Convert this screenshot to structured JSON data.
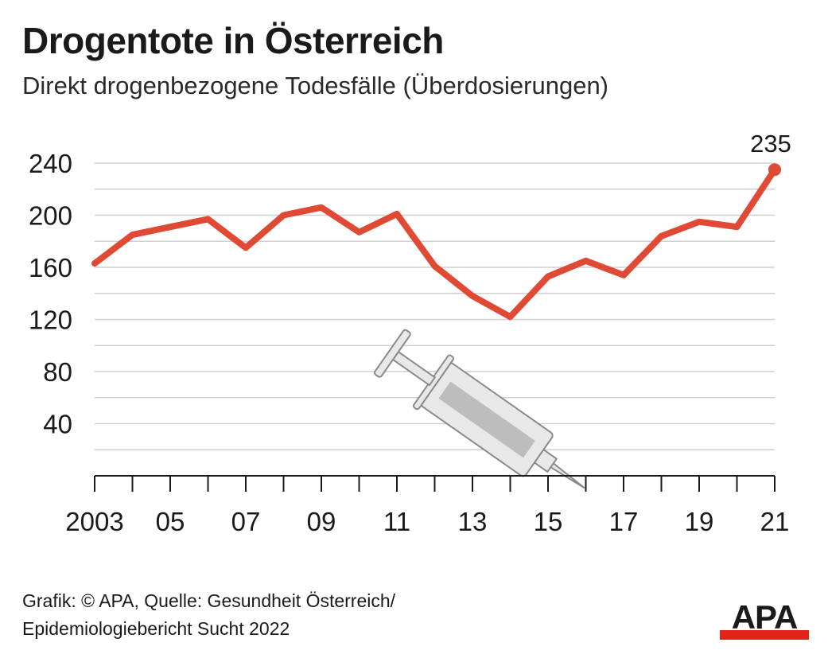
{
  "header": {
    "title": "Drogentote in Österreich",
    "subtitle": "Direkt drogenbezogene Todesfälle (Überdosierungen)"
  },
  "chart_data": {
    "type": "line",
    "x": [
      2003,
      2004,
      2005,
      2006,
      2007,
      2008,
      2009,
      2010,
      2011,
      2012,
      2013,
      2014,
      2015,
      2016,
      2017,
      2018,
      2019,
      2020,
      2021
    ],
    "x_tick_labels": [
      {
        "x": 2003,
        "label": "2003"
      },
      {
        "x": 2005,
        "label": "05"
      },
      {
        "x": 2007,
        "label": "07"
      },
      {
        "x": 2009,
        "label": "09"
      },
      {
        "x": 2011,
        "label": "11"
      },
      {
        "x": 2013,
        "label": "13"
      },
      {
        "x": 2015,
        "label": "15"
      },
      {
        "x": 2017,
        "label": "17"
      },
      {
        "x": 2019,
        "label": "19"
      },
      {
        "x": 2021,
        "label": "21"
      }
    ],
    "series": [
      {
        "values": [
          163,
          185,
          191,
          197,
          175,
          200,
          206,
          187,
          201,
          161,
          138,
          122,
          153,
          165,
          154,
          184,
          195,
          191,
          235
        ]
      }
    ],
    "y_ticks": [
      40,
      80,
      120,
      160,
      200,
      240
    ],
    "ylim": [
      0,
      250
    ],
    "xlim": [
      2003,
      2021
    ],
    "grid": true,
    "highlight": {
      "x": 2021,
      "value": 235,
      "label": "235"
    },
    "line_color": "#e04a35",
    "grid_color": "#d0d0d0"
  },
  "footer": {
    "source_line1": "Grafik: © APA, Quelle: Gesundheit Österreich/",
    "source_line2": "Epidemiologiebericht Sucht 2022",
    "logo_text": "APA",
    "logo_bar_color": "#e2231a"
  }
}
